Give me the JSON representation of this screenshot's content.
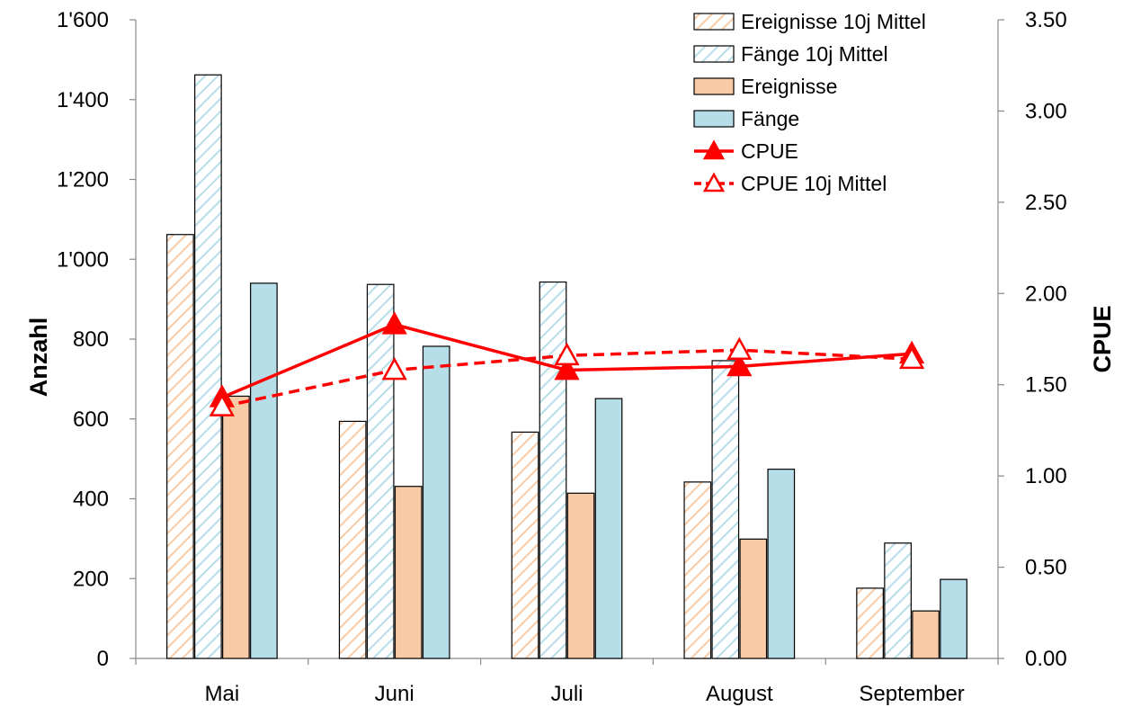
{
  "chart_data": {
    "type": "bar",
    "categories": [
      "Mai",
      "Juni",
      "Juli",
      "August",
      "September"
    ],
    "ylabel": "Anzahl",
    "y2label": "CPUE",
    "ylim": [
      0,
      1600
    ],
    "y2lim": [
      0,
      3.5
    ],
    "yticks": [
      "0",
      "200",
      "400",
      "600",
      "800",
      "1'000",
      "1'200",
      "1'400",
      "1'600"
    ],
    "y2ticks": [
      "0.00",
      "0.50",
      "1.00",
      "1.50",
      "2.00",
      "2.50",
      "3.00",
      "3.50"
    ],
    "grid": false,
    "legend_position": "top-right",
    "series": [
      {
        "name": "Ereignisse 10j Mittel",
        "kind": "bar",
        "pattern": "hatched",
        "axis": "left",
        "color": "#f8cba6",
        "values": [
          1062,
          594,
          567,
          442,
          176
        ]
      },
      {
        "name": "Fänge 10j Mittel",
        "kind": "bar",
        "pattern": "hatched",
        "axis": "left",
        "color": "#add8e6",
        "values": [
          1462,
          937,
          943,
          746,
          289
        ]
      },
      {
        "name": "Ereignisse",
        "kind": "bar",
        "pattern": "solid",
        "axis": "left",
        "color": "#f8cba6",
        "values": [
          657,
          431,
          414,
          299,
          119
        ]
      },
      {
        "name": "Fänge",
        "kind": "bar",
        "pattern": "solid",
        "axis": "left",
        "color": "#b7dde8",
        "values": [
          940,
          782,
          651,
          474,
          198
        ]
      },
      {
        "name": "CPUE",
        "kind": "line",
        "style": "solid",
        "marker": "filled-triangle",
        "axis": "right",
        "color": "#ff0000",
        "values": [
          1.43,
          1.83,
          1.58,
          1.6,
          1.67
        ]
      },
      {
        "name": "CPUE 10j Mittel",
        "kind": "line",
        "style": "dashed",
        "marker": "open-triangle",
        "axis": "right",
        "color": "#ff0000",
        "values": [
          1.38,
          1.58,
          1.66,
          1.69,
          1.64
        ]
      }
    ]
  }
}
